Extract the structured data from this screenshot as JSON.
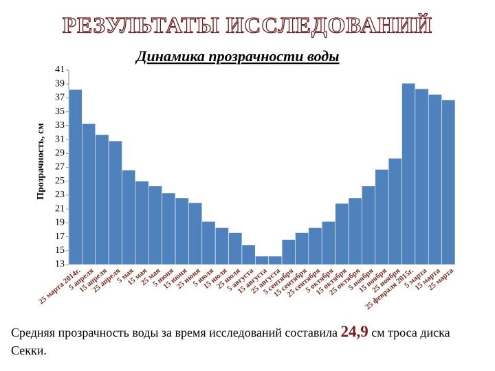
{
  "chart_data": {
    "type": "bar",
    "title": "РЕЗУЛЬТАТЫ ИССЛЕДОВАНИЙ",
    "subtitle": "Динамика прозрачности воды",
    "y_label": "Прозрачность, см",
    "categories": [
      "25 марта 2014г.",
      "5 апреля",
      "15 апреля",
      "25 апреля",
      "5 мая",
      "15 мая",
      "25 мая",
      "5 июня",
      "15 июня",
      "25 июня",
      "5 июля",
      "15 июля",
      "25 июля",
      "5 августа",
      "15 августа",
      "25 августа",
      "5 сентября",
      "15 сентября",
      "25 сентября",
      "5 октября",
      "15 октября",
      "25 октября",
      "5 ноября",
      "15 ноября",
      "25 ноября",
      "25 февраля 2015г.",
      "5 марта",
      "15 марта",
      "25 марта"
    ],
    "values": [
      38.2,
      33.3,
      31.7,
      30.8,
      26.6,
      25,
      24.3,
      23.3,
      22.6,
      21.9,
      19.2,
      18.3,
      17.6,
      15.8,
      14.2,
      14.2,
      16.6,
      17.6,
      18.3,
      19.2,
      21.8,
      22.6,
      24.3,
      26.7,
      28.3,
      39.1,
      38.3,
      37.5,
      36.7
    ],
    "color": "#4f81bd",
    "ylim": [
      13,
      41
    ],
    "yticks": [
      13,
      15,
      17,
      19,
      21,
      23,
      25,
      27,
      29,
      31,
      33,
      35,
      37,
      39,
      41
    ]
  },
  "caption": {
    "before": "Средняя прозрачность воды за время исследований составила",
    "value": "24,9",
    "after": "см троса диска Секки."
  }
}
